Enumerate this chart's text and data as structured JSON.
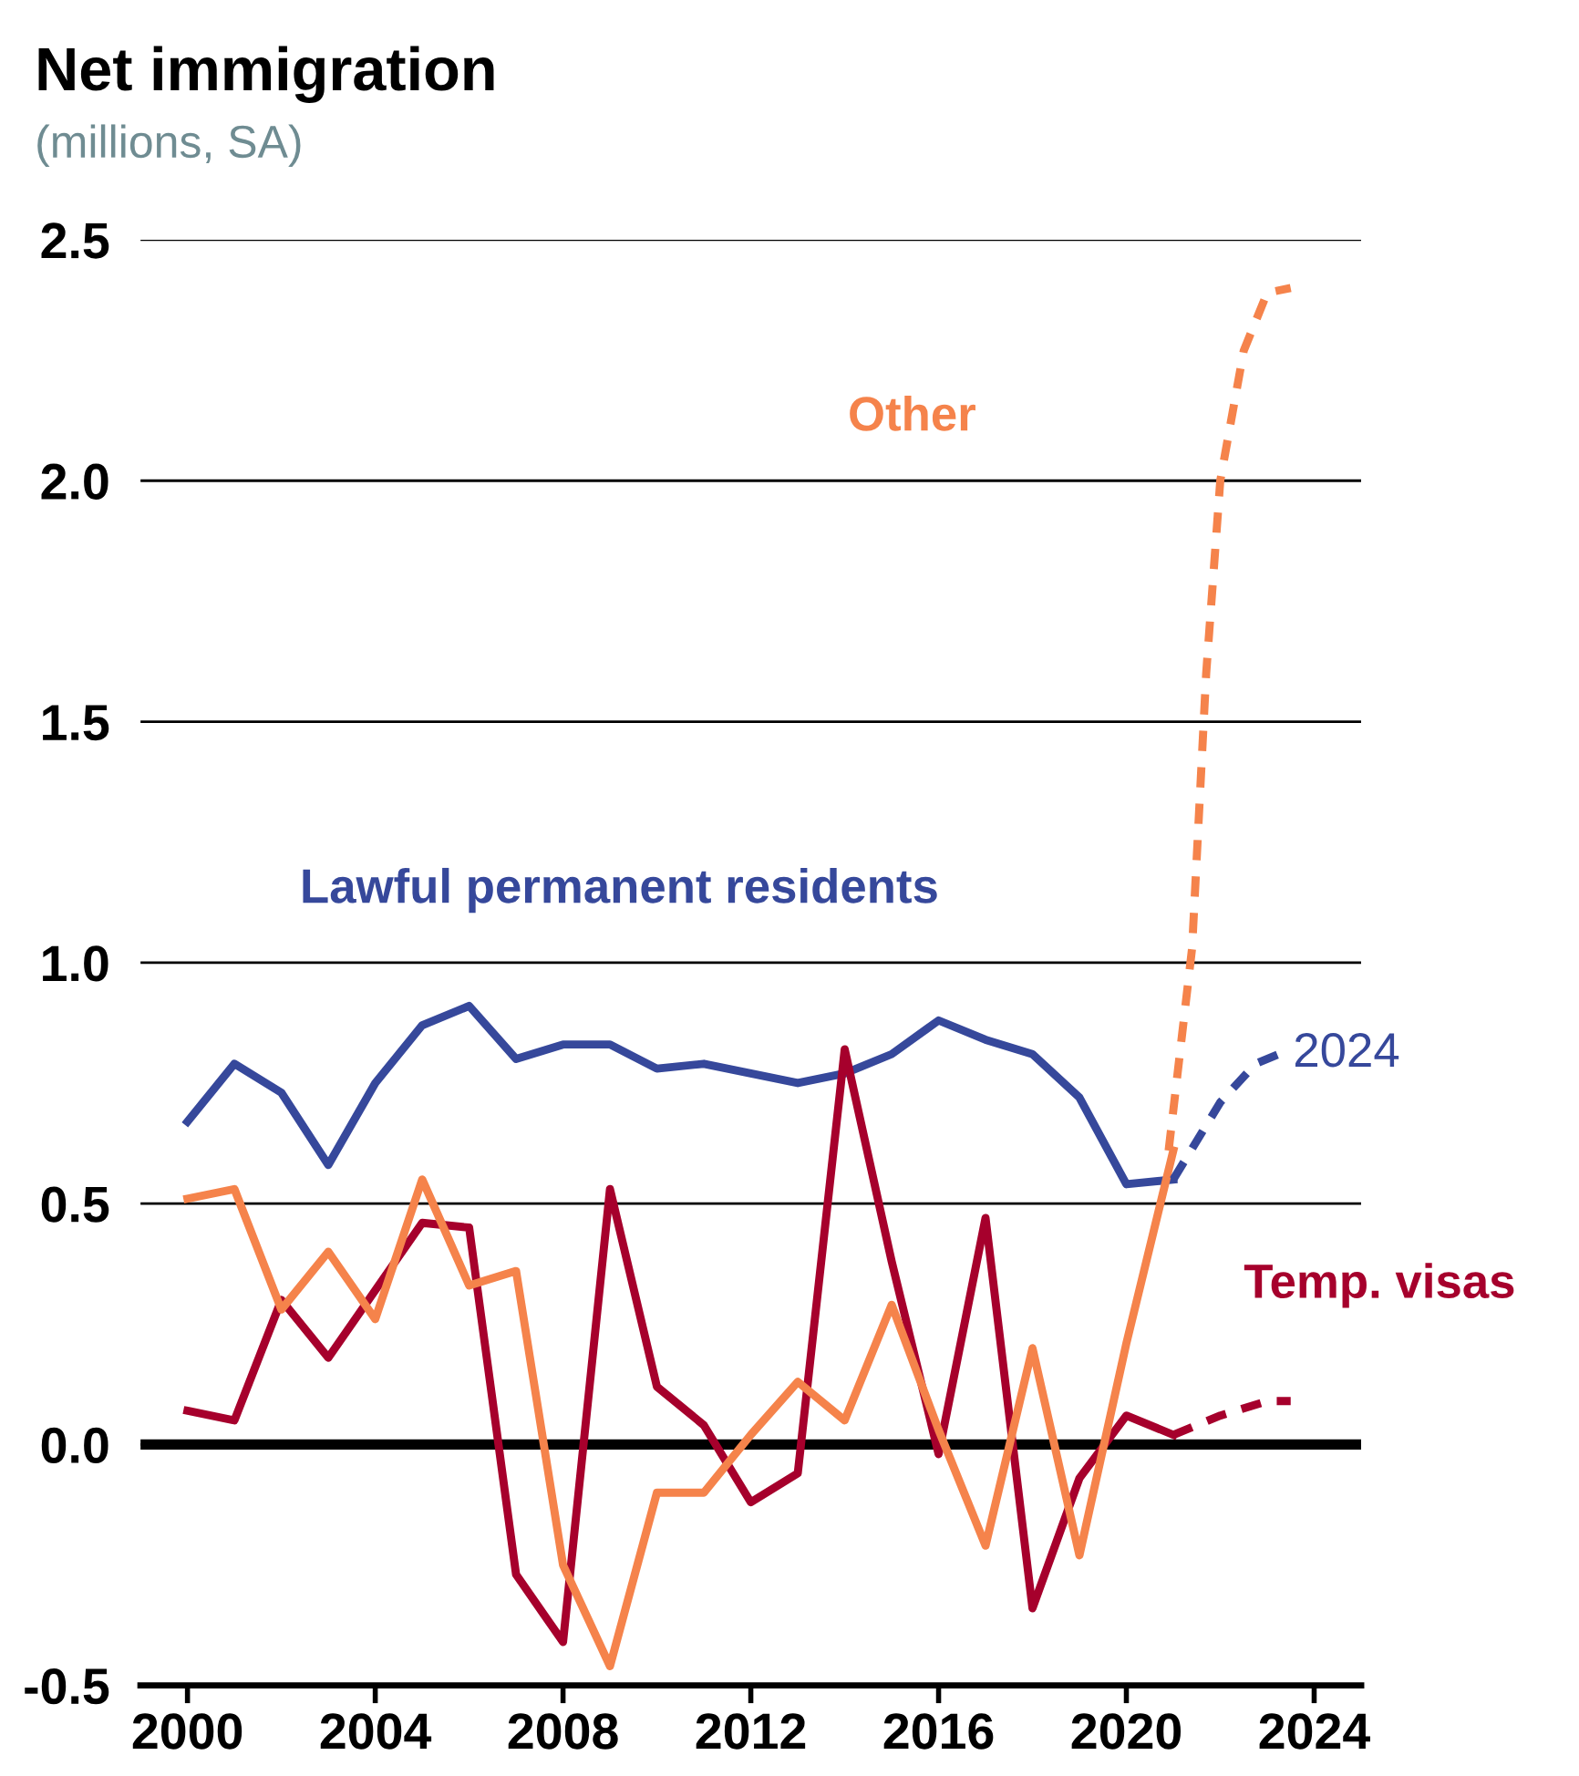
{
  "chart_data": {
    "type": "line",
    "title": "Net immigration",
    "subtitle": "(millions, SA)",
    "x": [
      2000,
      2001,
      2002,
      2003,
      2004,
      2005,
      2006,
      2007,
      2008,
      2009,
      2010,
      2011,
      2012,
      2013,
      2014,
      2015,
      2016,
      2017,
      2018,
      2019,
      2020,
      2021
    ],
    "series": [
      {
        "name": "Lawful permanent residents",
        "color": "#36489b",
        "values": [
          0.67,
          0.79,
          0.73,
          0.58,
          0.75,
          0.87,
          0.91,
          0.8,
          0.83,
          0.83,
          0.78,
          0.79,
          0.77,
          0.75,
          0.77,
          0.81,
          0.88,
          0.84,
          0.81,
          0.72,
          0.54,
          0.55
        ]
      },
      {
        "name": "Temp. visas",
        "color": "#a6002c",
        "values": [
          0.07,
          0.05,
          0.3,
          0.18,
          0.32,
          0.46,
          0.45,
          -0.27,
          -0.41,
          0.53,
          0.12,
          0.04,
          -0.12,
          -0.06,
          0.82,
          0.38,
          -0.02,
          0.47,
          -0.34,
          -0.07,
          0.06,
          0.02
        ]
      },
      {
        "name": "Other",
        "color": "#f5834b",
        "values": [
          0.51,
          0.53,
          0.28,
          0.4,
          0.26,
          0.55,
          0.33,
          0.36,
          -0.25,
          -0.46,
          -0.1,
          -0.1,
          0.02,
          0.13,
          0.05,
          0.29,
          0.03,
          -0.21,
          0.2,
          -0.23,
          0.21,
          0.61
        ]
      },
      {
        "color": "#36489b",
        "line_style": "dashed",
        "x": [
          2021,
          2022,
          2022.75,
          2023.25
        ],
        "values": [
          0.55,
          0.71,
          0.79,
          0.81
        ]
      },
      {
        "color": "#a6002c",
        "line_style": "dashed",
        "x": [
          2021,
          2022,
          2023,
          2023.5
        ],
        "values": [
          0.02,
          0.06,
          0.09,
          0.09
        ]
      },
      {
        "color": "#f5834b",
        "line_style": "dashed",
        "x": [
          2020.9,
          2021.4,
          2021.7,
          2022,
          2022.5,
          2023,
          2023.5
        ],
        "values": [
          0.61,
          1.03,
          1.6,
          2.0,
          2.27,
          2.39,
          2.4
        ]
      }
    ],
    "annotations": [
      {
        "text": "2024",
        "x": 2023.25,
        "y": 0.81
      }
    ],
    "xlim": [
      1999,
      2025
    ],
    "xticks": [
      2000,
      2004,
      2008,
      2012,
      2016,
      2020,
      2024
    ],
    "ylim": [
      -0.5,
      2.5
    ],
    "yticks": [
      {
        "value": -0.5,
        "label": "-0.5"
      },
      {
        "value": 0,
        "label": "0.0"
      },
      {
        "value": 0.5,
        "label": "0.5"
      },
      {
        "value": 1,
        "label": "1.0"
      },
      {
        "value": 1.5,
        "label": "1.5"
      },
      {
        "value": 2,
        "label": "2.0"
      },
      {
        "value": 2.5,
        "label": "2.5"
      }
    ],
    "ref_lines": [
      {
        "axis": "y",
        "value": 0,
        "color": "#000000"
      }
    ],
    "grid": "y",
    "legend": false
  }
}
